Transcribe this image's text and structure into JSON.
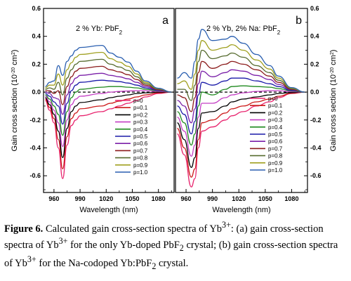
{
  "chart_data": [
    {
      "type": "line",
      "panel": "a",
      "title": "2 % Yb: PbF2",
      "title_main": "2 % Yb: PbF",
      "title_sub": "2",
      "xlabel": "Wavelength (nm)",
      "ylabel": "Gain cross section (10",
      "ylabel_sup": "-20",
      "ylabel_tail": " cm",
      "ylabel_sup2": "2",
      "ylabel_end": ")",
      "xlim": [
        948,
        1098
      ],
      "ylim": [
        -0.72,
        0.6
      ],
      "xticks": [
        960,
        990,
        1020,
        1050,
        1080
      ],
      "yticks": [
        -0.6,
        -0.4,
        -0.2,
        0.0,
        0.2,
        0.4,
        0.6
      ],
      "yaxis_side": "left",
      "legend_position": "lower-right",
      "zero_line": "dashed",
      "grid": false,
      "series": [
        {
          "name": "p=0",
          "color": "#e8246e",
          "values": [
            -0.06,
            -0.13,
            -0.22,
            -0.4,
            -0.62,
            -0.38,
            -0.24,
            -0.2,
            -0.17,
            -0.14,
            -0.12,
            -0.1,
            -0.08,
            -0.06,
            -0.035,
            -0.01,
            0
          ]
        },
        {
          "name": "p=0.1",
          "color": "#cc1a1a",
          "values": [
            -0.05,
            -0.11,
            -0.19,
            -0.34,
            -0.55,
            -0.32,
            -0.19,
            -0.15,
            -0.12,
            -0.1,
            -0.08,
            -0.065,
            -0.05,
            -0.035,
            -0.02,
            -0.005,
            0
          ]
        },
        {
          "name": "p=0.2",
          "color": "#000000",
          "values": [
            -0.04,
            -0.09,
            -0.16,
            -0.28,
            -0.47,
            -0.26,
            -0.14,
            -0.1,
            -0.075,
            -0.055,
            -0.04,
            -0.03,
            -0.02,
            -0.01,
            -0.005,
            0,
            0
          ]
        },
        {
          "name": "p=0.3",
          "color": "#c43ec4",
          "values": [
            -0.03,
            -0.07,
            -0.13,
            -0.22,
            -0.39,
            -0.2,
            -0.09,
            -0.05,
            -0.03,
            -0.01,
            0,
            0.005,
            0.008,
            0.01,
            0.01,
            0.005,
            0
          ]
        },
        {
          "name": "p=0.4",
          "color": "#1f8a1f",
          "values": [
            -0.02,
            -0.05,
            -0.1,
            -0.16,
            -0.31,
            -0.14,
            -0.04,
            0,
            0.02,
            0.035,
            0.04,
            0.04,
            0.035,
            0.03,
            0.02,
            0.01,
            0
          ]
        },
        {
          "name": "p=0.5",
          "color": "#1a1aa8",
          "values": [
            -0.01,
            -0.03,
            -0.07,
            -0.1,
            -0.23,
            -0.08,
            0.01,
            0.05,
            0.07,
            0.085,
            0.08,
            0.075,
            0.065,
            0.05,
            0.03,
            0.012,
            0
          ]
        },
        {
          "name": "p=0.6",
          "color": "#7a1fa8",
          "values": [
            0,
            -0.01,
            -0.04,
            -0.05,
            -0.16,
            -0.02,
            0.06,
            0.1,
            0.12,
            0.135,
            0.12,
            0.11,
            0.095,
            0.07,
            0.04,
            0.015,
            0
          ]
        },
        {
          "name": "p=0.7",
          "color": "#8b1a1a",
          "values": [
            0.01,
            0.01,
            -0.01,
            0.01,
            -0.09,
            0.04,
            0.11,
            0.15,
            0.17,
            0.185,
            0.16,
            0.145,
            0.125,
            0.09,
            0.05,
            0.018,
            0
          ]
        },
        {
          "name": "p=0.8",
          "color": "#566b2f",
          "values": [
            0.02,
            0.03,
            0.02,
            0.07,
            -0.02,
            0.1,
            0.16,
            0.2,
            0.22,
            0.235,
            0.2,
            0.18,
            0.155,
            0.11,
            0.06,
            0.021,
            0
          ]
        },
        {
          "name": "p=0.9",
          "color": "#a0a020",
          "values": [
            0.03,
            0.05,
            0.05,
            0.13,
            0.05,
            0.16,
            0.21,
            0.25,
            0.27,
            0.285,
            0.24,
            0.215,
            0.185,
            0.13,
            0.07,
            0.024,
            0
          ]
        },
        {
          "name": "p=1.0",
          "color": "#2a5fb0",
          "values": [
            0.04,
            0.07,
            0.08,
            0.19,
            0.12,
            0.22,
            0.26,
            0.3,
            0.32,
            0.335,
            0.28,
            0.25,
            0.215,
            0.15,
            0.08,
            0.027,
            0
          ]
        }
      ],
      "x": [
        950,
        955,
        960,
        965,
        970,
        975,
        980,
        985,
        990,
        1015,
        1025,
        1035,
        1045,
        1055,
        1065,
        1080,
        1095
      ]
    },
    {
      "type": "line",
      "panel": "b",
      "title": "2 % Yb, 2% Na: PbF2",
      "title_main": "2 % Yb, 2% Na: PbF",
      "title_sub": "2",
      "xlabel": "Wavelength (nm)",
      "ylabel": "Gain cross section (10",
      "ylabel_sup": "-20",
      "ylabel_tail": " cm",
      "ylabel_sup2": "2",
      "ylabel_end": ")",
      "xlim": [
        948,
        1098
      ],
      "ylim": [
        -0.72,
        0.6
      ],
      "xticks": [
        960,
        990,
        1020,
        1050,
        1080
      ],
      "yticks": [
        -0.6,
        -0.4,
        -0.2,
        0.0,
        0.2,
        0.4,
        0.6
      ],
      "yaxis_side": "right",
      "legend_position": "lower-right",
      "zero_line": "dashed",
      "grid": false,
      "series": [
        {
          "name": "p=0",
          "color": "#e8246e",
          "values": [
            -0.3,
            -0.45,
            -0.68,
            -0.62,
            -0.4,
            -0.28,
            -0.25,
            -0.2,
            -0.17,
            -0.14,
            -0.1,
            -0.07,
            -0.04,
            -0.01,
            0
          ]
        },
        {
          "name": "p=0.1",
          "color": "#cc1a1a",
          "values": [
            -0.26,
            -0.4,
            -0.61,
            -0.55,
            -0.34,
            -0.22,
            -0.2,
            -0.15,
            -0.12,
            -0.1,
            -0.07,
            -0.05,
            -0.03,
            -0.008,
            0
          ]
        },
        {
          "name": "p=0.2",
          "color": "#000000",
          "values": [
            -0.22,
            -0.34,
            -0.54,
            -0.47,
            -0.26,
            -0.15,
            -0.14,
            -0.1,
            -0.07,
            -0.05,
            -0.035,
            -0.02,
            -0.01,
            -0.003,
            0
          ]
        },
        {
          "name": "p=0.3",
          "color": "#c43ec4",
          "values": [
            -0.18,
            -0.28,
            -0.46,
            -0.38,
            -0.18,
            -0.08,
            -0.08,
            -0.04,
            -0.02,
            -0.005,
            0.005,
            0.01,
            0.01,
            0.003,
            0
          ]
        },
        {
          "name": "p=0.4",
          "color": "#1f8a1f",
          "values": [
            -0.14,
            -0.22,
            -0.38,
            -0.3,
            -0.1,
            0,
            -0.02,
            0.02,
            0.04,
            0.045,
            0.04,
            0.035,
            0.025,
            0.008,
            0
          ]
        },
        {
          "name": "p=0.5",
          "color": "#1a1aa8",
          "values": [
            -0.1,
            -0.16,
            -0.3,
            -0.21,
            -0.02,
            0.07,
            0.05,
            0.08,
            0.1,
            0.1,
            0.08,
            0.06,
            0.04,
            0.012,
            0
          ]
        },
        {
          "name": "p=0.6",
          "color": "#7a1fa8",
          "values": [
            -0.06,
            -0.1,
            -0.22,
            -0.12,
            0.06,
            0.15,
            0.11,
            0.14,
            0.16,
            0.15,
            0.12,
            0.09,
            0.055,
            0.016,
            0
          ]
        },
        {
          "name": "p=0.7",
          "color": "#8b1a1a",
          "values": [
            -0.02,
            -0.04,
            -0.14,
            -0.04,
            0.14,
            0.22,
            0.17,
            0.2,
            0.22,
            0.2,
            0.16,
            0.115,
            0.07,
            0.02,
            0
          ]
        },
        {
          "name": "p=0.8",
          "color": "#566b2f",
          "values": [
            0.02,
            0.02,
            -0.06,
            0.05,
            0.22,
            0.3,
            0.24,
            0.26,
            0.28,
            0.25,
            0.19,
            0.14,
            0.085,
            0.024,
            0
          ]
        },
        {
          "name": "p=0.9",
          "color": "#a0a020",
          "values": [
            0.06,
            0.08,
            0.02,
            0.13,
            0.3,
            0.37,
            0.3,
            0.32,
            0.34,
            0.3,
            0.23,
            0.165,
            0.1,
            0.028,
            0
          ]
        },
        {
          "name": "p=1.0",
          "color": "#2a5fb0",
          "values": [
            0.1,
            0.14,
            0.1,
            0.22,
            0.38,
            0.45,
            0.37,
            0.38,
            0.4,
            0.35,
            0.27,
            0.19,
            0.115,
            0.032,
            0
          ]
        }
      ],
      "x": [
        950,
        958,
        966,
        970,
        974,
        978,
        990,
        1005,
        1012,
        1025,
        1040,
        1055,
        1065,
        1080,
        1095
      ]
    }
  ],
  "caption": {
    "lead": "Figure 6.",
    "text": "  Calculated gain cross-section spectra of Yb3+: (a) gain cross-section spectra of Yb3+ for the only Yb-doped PbF2 crystal; (b) gain cross-section spectra of Yb3+ for the Na-codoped Yb:PbF2 crystal."
  }
}
